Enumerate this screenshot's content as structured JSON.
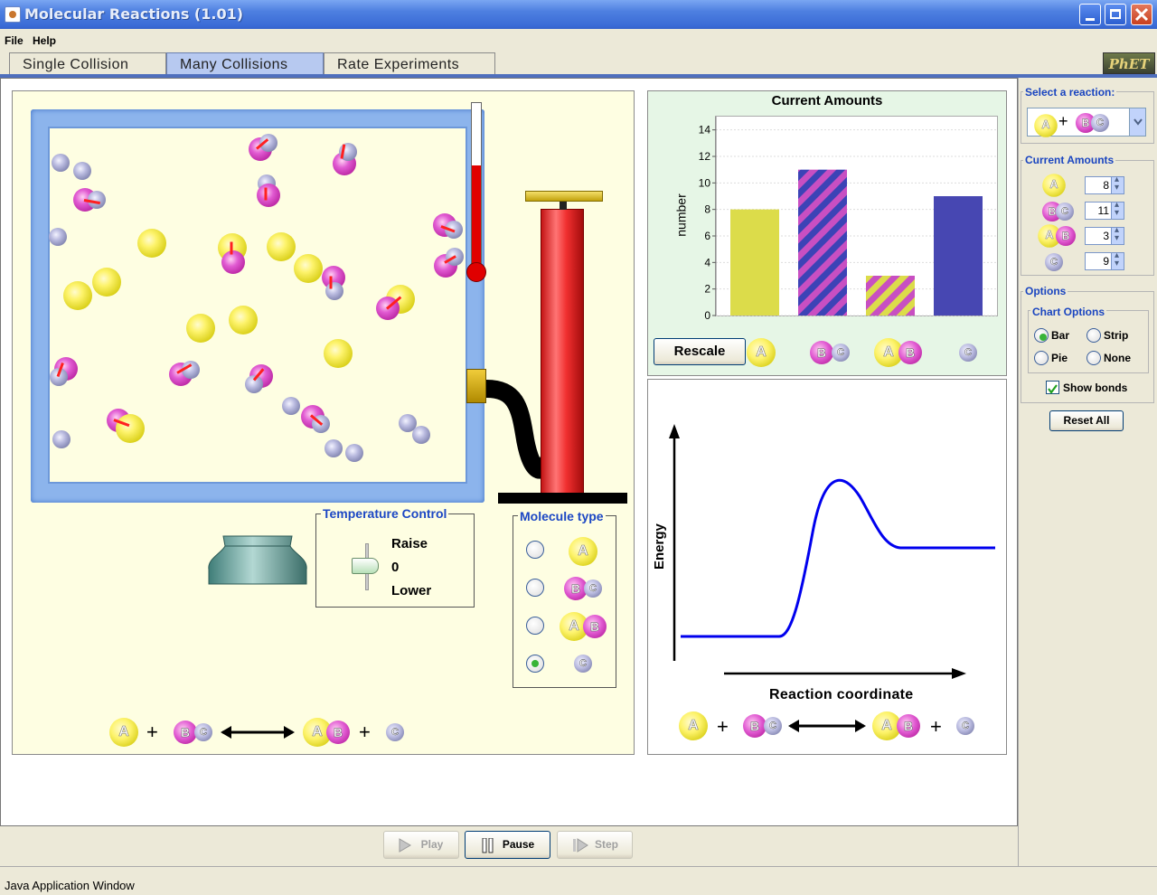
{
  "window": {
    "title": "Molecular Reactions (1.01)"
  },
  "menu": {
    "file": "File",
    "help": "Help"
  },
  "tabs": [
    {
      "label": "Single Collision",
      "active": false
    },
    {
      "label": "Many Collisions",
      "active": true
    },
    {
      "label": "Rate Experiments",
      "active": false
    }
  ],
  "logo": "PhET",
  "temperature_control": {
    "title": "Temperature Control",
    "raise": "Raise",
    "zero": "0",
    "lower": "Lower"
  },
  "molecule_type": {
    "title": "Molecule type",
    "options": [
      "A",
      "BC",
      "AB",
      "C"
    ],
    "selected": "C"
  },
  "equation": {
    "lhs1": "A",
    "plus": "+",
    "lhs2": "BC",
    "rhs1": "AB",
    "rhs2": "C"
  },
  "chart_data": {
    "type": "bar",
    "title": "Current Amounts",
    "ylabel": "number",
    "xlabel": "",
    "categories": [
      "A",
      "BC",
      "AB",
      "C"
    ],
    "values": [
      8,
      11,
      3,
      9
    ],
    "ylim": [
      0,
      15
    ],
    "yticks": [
      0,
      2,
      4,
      6,
      8,
      10,
      12,
      14
    ],
    "colors": [
      "#dcdc4a",
      "#c84fc2/#3c43b6 stripes",
      "#dcdc4a/#c84fc2 stripes",
      "#4747b2"
    ],
    "grid": true
  },
  "rescale_button": "Rescale",
  "energy_chart": {
    "ylabel": "Energy",
    "xlabel": "Reaction coordinate"
  },
  "control_panel": {
    "select_reaction_title": "Select a reaction:",
    "reaction": {
      "a": "A",
      "plus": "+",
      "bc": "BC"
    },
    "current_amounts_title": "Current Amounts",
    "amounts": [
      {
        "label": "A",
        "value": "8"
      },
      {
        "label": "BC",
        "value": "11"
      },
      {
        "label": "AB",
        "value": "3"
      },
      {
        "label": "C",
        "value": "9"
      }
    ],
    "options_title": "Options",
    "chart_options_title": "Chart Options",
    "chart_options": [
      {
        "label": "Bar",
        "selected": true
      },
      {
        "label": "Strip",
        "selected": false
      },
      {
        "label": "Pie",
        "selected": false
      },
      {
        "label": "None",
        "selected": false
      }
    ],
    "show_bonds": {
      "label": "Show bonds",
      "checked": true
    },
    "reset_all": "Reset All"
  },
  "clock_controls": {
    "play": "Play",
    "pause": "Pause",
    "step": "Step"
  },
  "status": "Java Application Window"
}
